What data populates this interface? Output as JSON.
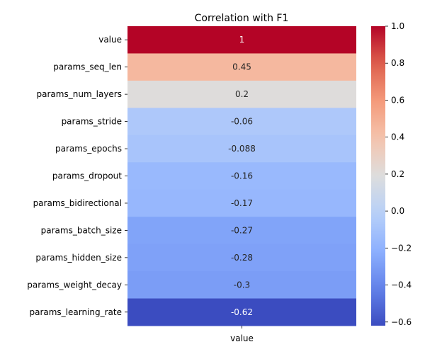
{
  "chart_data": {
    "type": "heatmap",
    "title": "Correlation with F1",
    "colormap": "coolwarm",
    "columns": [
      "value"
    ],
    "rows": [
      "value",
      "params_seq_len",
      "params_num_layers",
      "params_stride",
      "params_epochs",
      "params_dropout",
      "params_bidirectional",
      "params_batch_size",
      "params_hidden_size",
      "params_weight_decay",
      "params_learning_rate"
    ],
    "values": [
      1,
      0.45,
      0.2,
      -0.06,
      -0.088,
      -0.16,
      -0.17,
      -0.27,
      -0.28,
      -0.3,
      -0.62
    ],
    "value_labels": [
      "1",
      "0.45",
      "0.2",
      "-0.06",
      "-0.088",
      "-0.16",
      "-0.17",
      "-0.27",
      "-0.28",
      "-0.3",
      "-0.62"
    ],
    "colorbar": {
      "range": [
        -0.62,
        1
      ],
      "ticks": [
        1.0,
        0.8,
        0.6,
        0.4,
        0.2,
        0.0,
        -0.2,
        -0.4,
        -0.6
      ],
      "tick_labels": [
        "1.0",
        "0.8",
        "0.6",
        "0.4",
        "0.2",
        "0.0",
        "−0.2",
        "−0.4",
        "−0.6"
      ]
    }
  }
}
